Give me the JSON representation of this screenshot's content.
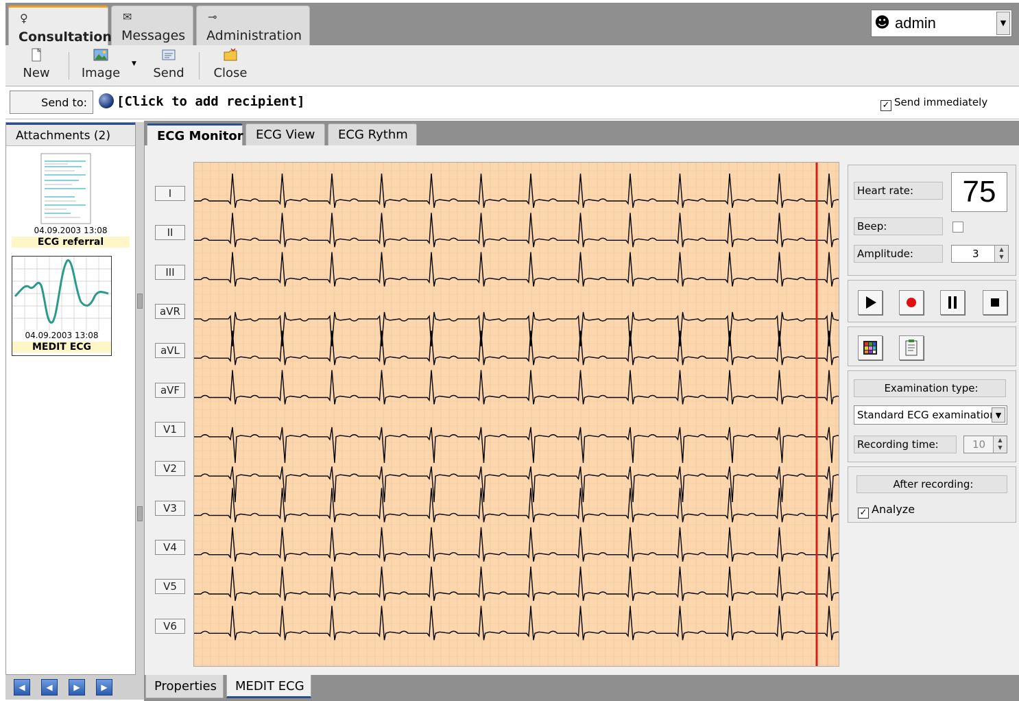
{
  "main_tabs": [
    {
      "label": "Consultation",
      "icon": "person-icon",
      "active": true
    },
    {
      "label": "Messages",
      "icon": "envelope-icon",
      "active": false
    },
    {
      "label": "Administration",
      "icon": "key-icon",
      "active": false
    }
  ],
  "user": {
    "name": "admin",
    "icon": "user-icon"
  },
  "toolbar": {
    "new_label": "New",
    "image_label": "Image",
    "send_label": "Send",
    "close_label": "Close"
  },
  "sendrow": {
    "send_to_label": "Send to:",
    "recipient_placeholder": "[Click to add recipient]",
    "send_immediately_label": "Send immediately",
    "send_immediately_checked": true
  },
  "attachments": {
    "header": "Attachments (2)",
    "items": [
      {
        "date": "04.09.2003 13:08",
        "name": "ECG referral",
        "icon": "document-thumbnail"
      },
      {
        "date": "04.09.2003 13:08",
        "name": "MEDIT ECG",
        "icon": "ecg-wave-thumbnail"
      }
    ],
    "nav": [
      "first-icon",
      "prev-icon",
      "next-icon",
      "last-icon"
    ]
  },
  "ecg_tabs": [
    {
      "label": "ECG Monitor",
      "active": true
    },
    {
      "label": "ECG View",
      "active": false
    },
    {
      "label": "ECG Rythm",
      "active": false
    }
  ],
  "leads": [
    "I",
    "II",
    "III",
    "aVR",
    "aVL",
    "aVF",
    "V1",
    "V2",
    "V3",
    "V4",
    "V5",
    "V6"
  ],
  "controls": {
    "heart_rate_label": "Heart rate:",
    "heart_rate_value": "75",
    "beep_label": "Beep:",
    "beep_checked": false,
    "amplitude_label": "Amplitude:",
    "amplitude_value": "3",
    "exam_type_label": "Examination type:",
    "exam_type_value": "Standard ECG examination",
    "recording_time_label": "Recording time:",
    "recording_time_value": "10",
    "after_recording_label": "After recording:",
    "analyze_label": "Analyze",
    "analyze_checked": true
  },
  "bottom_tabs": [
    {
      "label": "Properties",
      "active": false
    },
    {
      "label": "MEDIT ECG",
      "active": true
    }
  ],
  "colors": {
    "grid_background": "#fcd6ac",
    "grid_line": "#c98f6a",
    "trace": "#000000",
    "cursor": "#d0201a",
    "record": "#e01010"
  }
}
